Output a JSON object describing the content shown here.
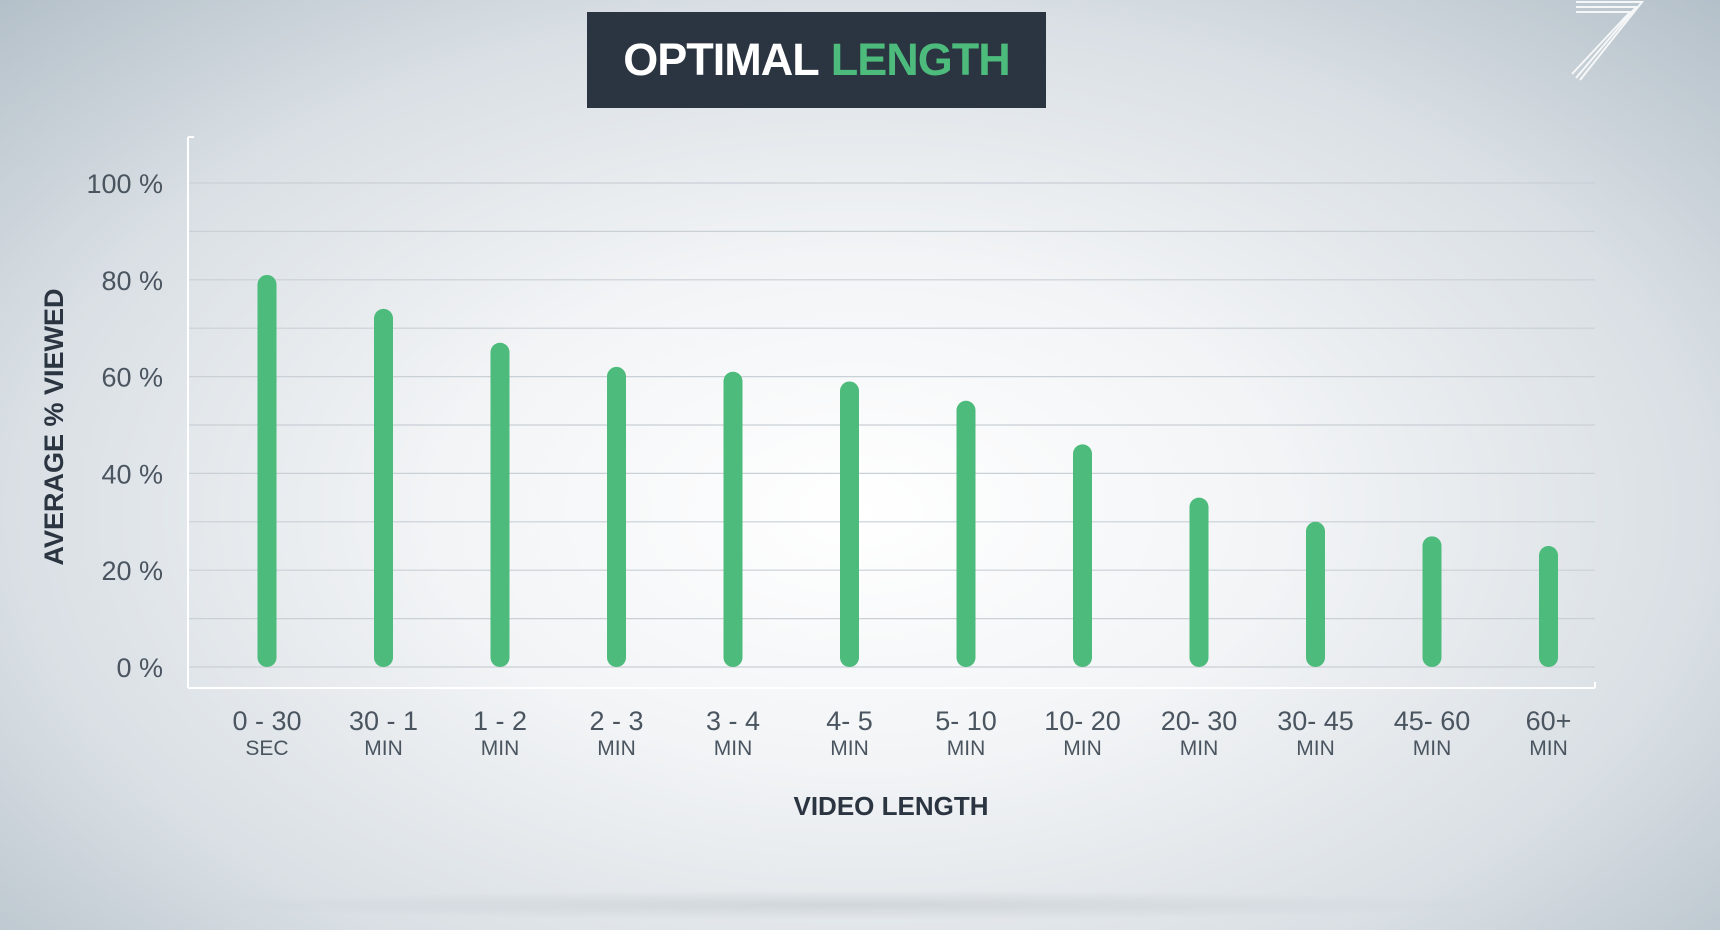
{
  "header": {
    "title_part1": "OPTIMAL",
    "title_part2": "LENGTH"
  },
  "logo": {
    "icon": "stylized-seven-logo-icon"
  },
  "colors": {
    "title_bg": "#2b3541",
    "accent_green": "#4cbb7b",
    "bar_green": "#4cbb7b",
    "axis_text": "#4a5560",
    "axis_title": "#2b3541"
  },
  "chart_data": {
    "type": "bar",
    "title": "OPTIMAL LENGTH",
    "xlabel": "VIDEO LENGTH",
    "ylabel": "AVERAGE % VIEWED",
    "ylim": [
      0,
      100
    ],
    "yticks": [
      "0 %",
      "20 %",
      "40 %",
      "60 %",
      "80 %",
      "100 %"
    ],
    "ytick_values": [
      0,
      20,
      40,
      60,
      80,
      100
    ],
    "grid": true,
    "categories": [
      {
        "line1": "0 - 30",
        "line2": "SEC"
      },
      {
        "line1": "30 - 1",
        "line2": "MIN"
      },
      {
        "line1": "1 - 2",
        "line2": "MIN"
      },
      {
        "line1": "2 - 3",
        "line2": "MIN"
      },
      {
        "line1": "3 - 4",
        "line2": "MIN"
      },
      {
        "line1": "4- 5",
        "line2": "MIN"
      },
      {
        "line1": "5- 10",
        "line2": "MIN"
      },
      {
        "line1": "10- 20",
        "line2": "MIN"
      },
      {
        "line1": "20- 30",
        "line2": "MIN"
      },
      {
        "line1": "30- 45",
        "line2": "MIN"
      },
      {
        "line1": "45- 60",
        "line2": "MIN"
      },
      {
        "line1": "60+",
        "line2": "MIN"
      }
    ],
    "values": [
      81,
      74,
      67,
      62,
      61,
      59,
      55,
      46,
      35,
      30,
      27,
      25
    ]
  }
}
